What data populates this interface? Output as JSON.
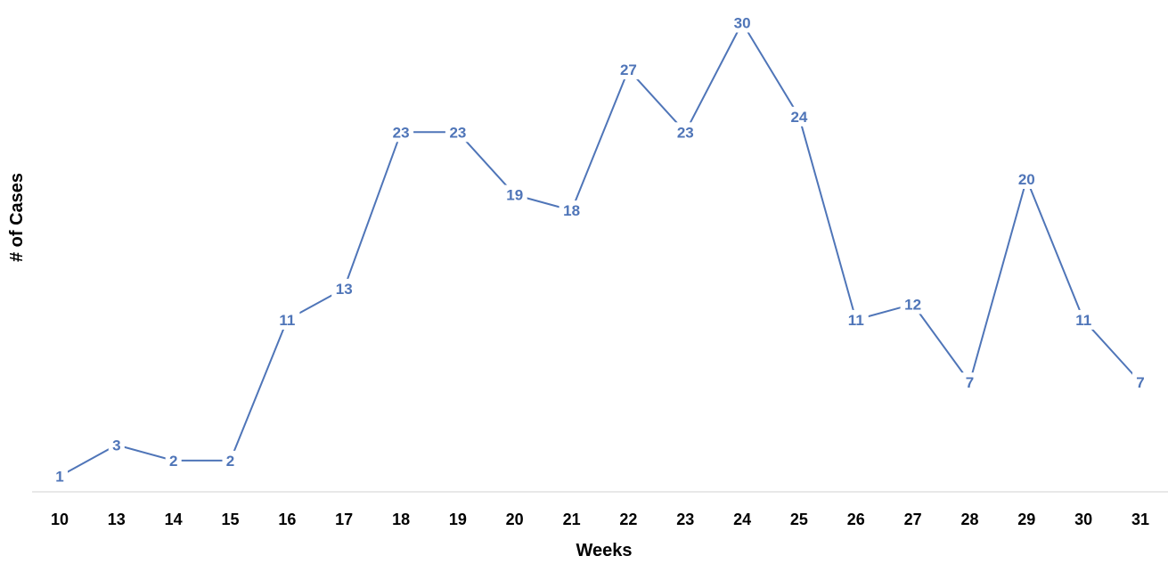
{
  "chart_data": {
    "type": "line",
    "title": "",
    "xlabel": "Weeks",
    "ylabel": "# of Cases",
    "categories": [
      "10",
      "13",
      "14",
      "15",
      "16",
      "17",
      "18",
      "19",
      "20",
      "21",
      "22",
      "23",
      "24",
      "25",
      "26",
      "27",
      "28",
      "29",
      "30",
      "31"
    ],
    "series": [
      {
        "values": [
          1,
          3,
          2,
          2,
          11,
          13,
          23,
          23,
          19,
          18,
          27,
          23,
          30,
          24,
          11,
          12,
          7,
          20,
          11,
          7
        ],
        "color": "#4f75b8"
      }
    ],
    "ylim": [
      0,
      30
    ],
    "grid": false,
    "legend": "none",
    "data_labels": true
  }
}
